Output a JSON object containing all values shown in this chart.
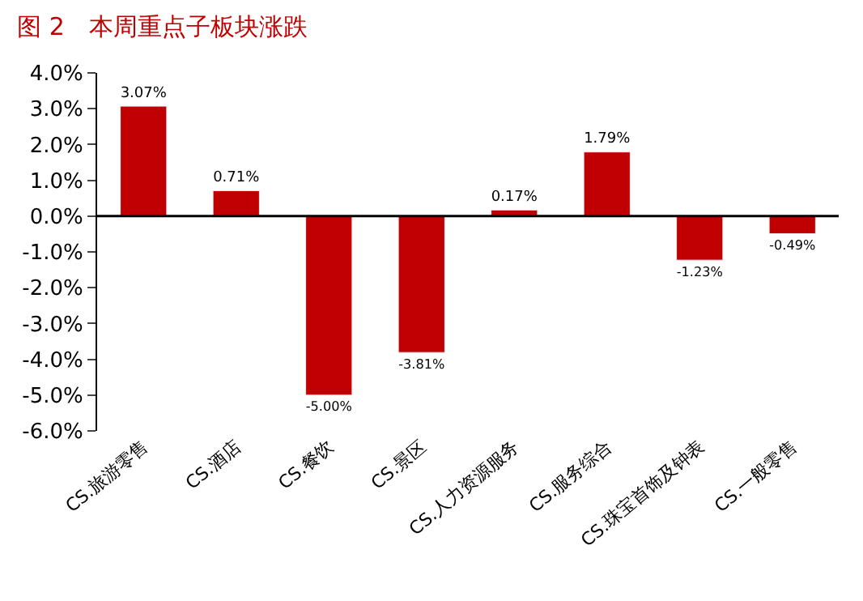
{
  "chart_data": {
    "type": "bar",
    "title": "图 2　本周重点子板块涨跌",
    "categories": [
      "CS.旅游零售",
      "CS.酒店",
      "CS.餐饮",
      "CS.景区",
      "CS.人力资源服务",
      "CS.服务综合",
      "CS.珠宝首饰及钟表",
      "CS.一般零售"
    ],
    "values": [
      3.07,
      0.71,
      -5.0,
      -3.81,
      0.17,
      1.79,
      -1.23,
      -0.49
    ],
    "value_labels": [
      "3.07%",
      "0.71%",
      "-5.00%",
      "-3.81%",
      "0.17%",
      "1.79%",
      "-1.23%",
      "-0.49%"
    ],
    "color": "#c00000",
    "ylim": [
      -6,
      4
    ],
    "yticks": [
      {
        "value": -6,
        "label": "-6.0%"
      },
      {
        "value": -5,
        "label": "-5.0%"
      },
      {
        "value": -4,
        "label": "-4.0%"
      },
      {
        "value": -3,
        "label": "-3.0%"
      },
      {
        "value": -2,
        "label": "-2.0%"
      },
      {
        "value": -1,
        "label": "-1.0%"
      },
      {
        "value": 0,
        "label": "0.0%"
      },
      {
        "value": 1,
        "label": "1.0%"
      },
      {
        "value": 2,
        "label": "2.0%"
      },
      {
        "value": 3,
        "label": "3.0%"
      },
      {
        "value": 4,
        "label": "4.0%"
      }
    ],
    "ref_lines": [
      {
        "axis": "y",
        "value": 0,
        "color": "#000000"
      }
    ],
    "legend": false
  }
}
